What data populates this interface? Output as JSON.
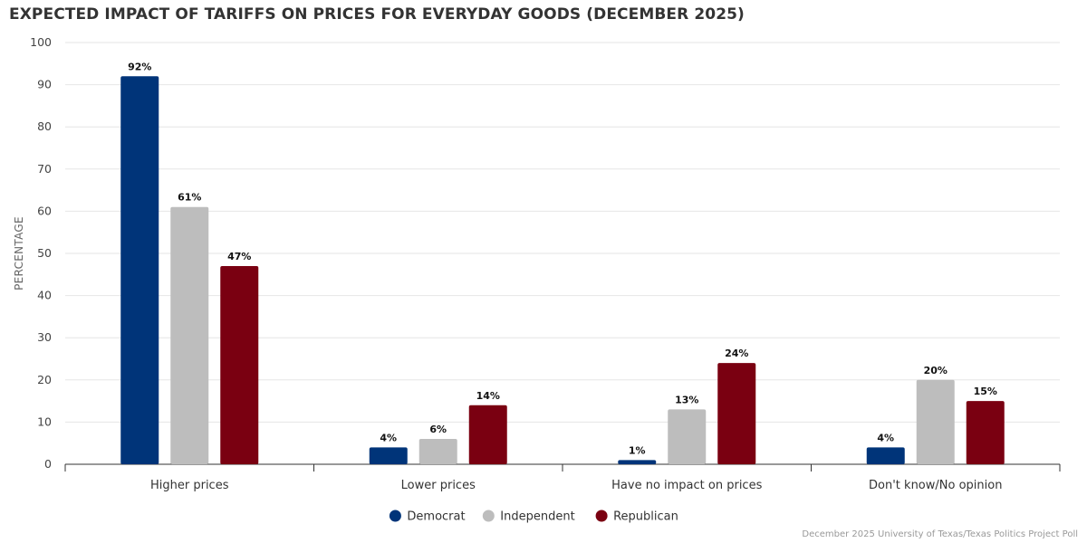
{
  "chart_data": {
    "type": "bar",
    "title": "EXPECTED IMPACT OF TARIFFS ON PRICES FOR EVERYDAY GOODS (DECEMBER 2025)",
    "xlabel": "",
    "ylabel": "PERCENTAGE",
    "ylim": [
      0,
      100
    ],
    "yticks": [
      0,
      10,
      20,
      30,
      40,
      50,
      60,
      70,
      80,
      90,
      100
    ],
    "categories": [
      "Higher prices",
      "Lower prices",
      "Have no impact on prices",
      "Don't know/No opinion"
    ],
    "series": [
      {
        "name": "Democrat",
        "color": "#003479",
        "values": [
          92,
          4,
          1,
          4
        ],
        "labels": [
          "92%",
          "4%",
          "1%",
          "4%"
        ]
      },
      {
        "name": "Independent",
        "color": "#bdbdbd",
        "values": [
          61,
          6,
          13,
          20
        ],
        "labels": [
          "61%",
          "6%",
          "13%",
          "20%"
        ]
      },
      {
        "name": "Republican",
        "color": "#7a0011",
        "values": [
          47,
          14,
          24,
          15
        ],
        "labels": [
          "47%",
          "14%",
          "24%",
          "15%"
        ]
      }
    ],
    "legend_position": "bottom-center",
    "grid": true,
    "credit": "December 2025 University of Texas/Texas Politics Project Poll"
  }
}
